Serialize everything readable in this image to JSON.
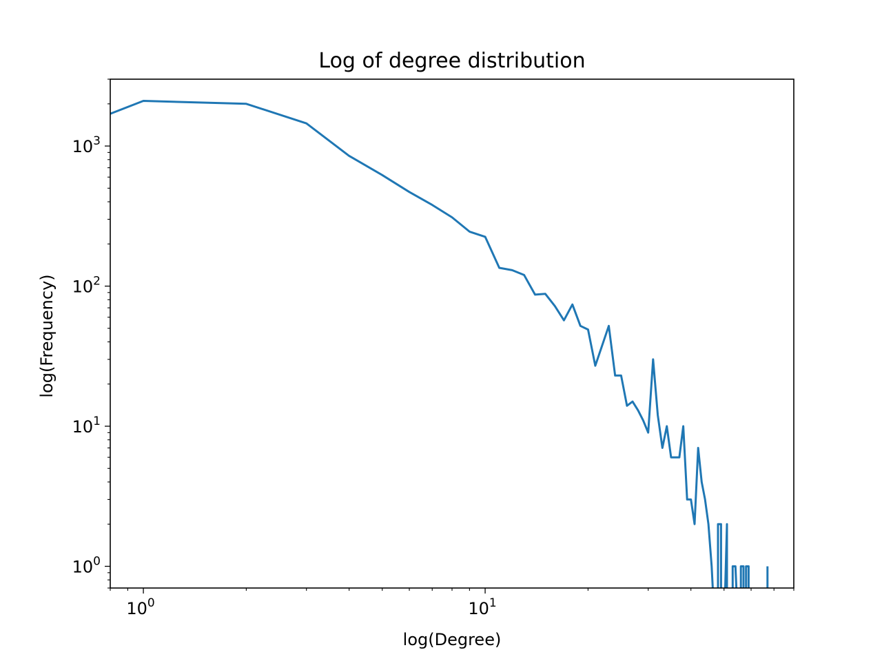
{
  "chart_data": {
    "type": "line",
    "title": "Log of degree distribution",
    "xlabel": "log(Degree)",
    "ylabel": "log(Frequency)",
    "xscale": "log",
    "yscale": "log",
    "xlim": [
      0.8,
      80
    ],
    "ylim": [
      0.7,
      3000
    ],
    "grid": false,
    "legend": "none",
    "line_color": "#1f77b4",
    "xticks": [
      {
        "base": "10",
        "exp": "0",
        "value": 1
      },
      {
        "base": "10",
        "exp": "1",
        "value": 10
      }
    ],
    "yticks": [
      {
        "base": "10",
        "exp": "0",
        "value": 1
      },
      {
        "base": "10",
        "exp": "1",
        "value": 10
      },
      {
        "base": "10",
        "exp": "2",
        "value": 100
      },
      {
        "base": "10",
        "exp": "3",
        "value": 1000
      }
    ],
    "series": [
      {
        "x": [
          0.8,
          1,
          2,
          3,
          4,
          5,
          6,
          7,
          8,
          9,
          10,
          11,
          12,
          13,
          14,
          15,
          16,
          17,
          18,
          19,
          20,
          21,
          23,
          24,
          25,
          26,
          27,
          28,
          29,
          30,
          31,
          32,
          33,
          34,
          35,
          36,
          37,
          38,
          39,
          40,
          41,
          42,
          43,
          44,
          45,
          45,
          46,
          47,
          48,
          48,
          49,
          49,
          50,
          51,
          51,
          52,
          53,
          53,
          54,
          55,
          55,
          56,
          56,
          57,
          57,
          58,
          58,
          59,
          59,
          60,
          60,
          61,
          61,
          62,
          62,
          63,
          63,
          64,
          65,
          66,
          66,
          67,
          67
        ],
        "y": [
          1700,
          2100,
          2000,
          1450,
          850,
          620,
          470,
          380,
          310,
          245,
          225,
          135,
          130,
          120,
          87,
          88,
          72,
          57,
          74,
          52,
          49,
          27,
          52,
          23,
          23,
          14,
          15,
          13,
          11,
          9,
          30,
          12,
          7,
          10,
          6,
          6,
          6,
          10,
          3,
          3,
          2,
          7,
          4,
          3,
          2,
          2,
          1,
          0,
          0,
          2,
          2,
          0,
          0,
          2,
          0,
          0,
          0,
          1,
          1,
          0,
          0,
          0,
          1,
          1,
          0,
          0,
          1,
          1,
          0,
          0,
          0,
          0,
          0,
          0,
          0,
          0,
          0,
          0,
          0,
          0,
          0,
          0,
          1
        ]
      }
    ]
  }
}
